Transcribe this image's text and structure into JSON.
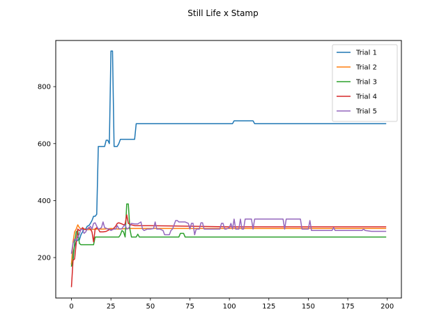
{
  "chart_data": {
    "type": "line",
    "title": "Still Life x Stamp",
    "xlabel": "",
    "ylabel": "",
    "xlim": [
      -9.95,
      208.95
    ],
    "ylim": [
      58,
      962
    ],
    "x_ticks": [
      0,
      25,
      50,
      75,
      100,
      125,
      150,
      175,
      200
    ],
    "y_ticks": [
      200,
      400,
      600,
      800
    ],
    "grid": false,
    "legend_position": "top-right",
    "series": [
      {
        "name": "Trial 1",
        "color": "#1f77b4",
        "points": [
          [
            0,
            180
          ],
          [
            1,
            215
          ],
          [
            2,
            240
          ],
          [
            3,
            255
          ],
          [
            4,
            262
          ],
          [
            5,
            262
          ],
          [
            6,
            280
          ],
          [
            7,
            290
          ],
          [
            8,
            300
          ],
          [
            9,
            300
          ],
          [
            10,
            310
          ],
          [
            11,
            312
          ],
          [
            12,
            320
          ],
          [
            13,
            330
          ],
          [
            14,
            345
          ],
          [
            15,
            345
          ],
          [
            16,
            352
          ],
          [
            17,
            590
          ],
          [
            18,
            590
          ],
          [
            19,
            590
          ],
          [
            20,
            590
          ],
          [
            21,
            590
          ],
          [
            22,
            612
          ],
          [
            23,
            612
          ],
          [
            24,
            600
          ],
          [
            25,
            925
          ],
          [
            26,
            925
          ],
          [
            27,
            590
          ],
          [
            28,
            590
          ],
          [
            29,
            590
          ],
          [
            30,
            600
          ],
          [
            31,
            615
          ],
          [
            32,
            615
          ],
          [
            33,
            615
          ],
          [
            34,
            615
          ],
          [
            35,
            615
          ],
          [
            36,
            615
          ],
          [
            37,
            615
          ],
          [
            38,
            615
          ],
          [
            39,
            615
          ],
          [
            40,
            615
          ],
          [
            41,
            670
          ],
          [
            60,
            670
          ],
          [
            80,
            670
          ],
          [
            100,
            670
          ],
          [
            102,
            670
          ],
          [
            103,
            680
          ],
          [
            110,
            680
          ],
          [
            115,
            680
          ],
          [
            116,
            670
          ],
          [
            150,
            670
          ],
          [
            199,
            670
          ]
        ]
      },
      {
        "name": "Trial 2",
        "color": "#ff7f0e",
        "points": [
          [
            0,
            175
          ],
          [
            1,
            255
          ],
          [
            2,
            290
          ],
          [
            3,
            300
          ],
          [
            4,
            315
          ],
          [
            5,
            305
          ],
          [
            6,
            300
          ],
          [
            7,
            300
          ],
          [
            8,
            300
          ],
          [
            10,
            298
          ],
          [
            12,
            298
          ],
          [
            15,
            300
          ],
          [
            20,
            300
          ],
          [
            25,
            302
          ],
          [
            30,
            300
          ],
          [
            35,
            302
          ],
          [
            40,
            302
          ],
          [
            50,
            302
          ],
          [
            100,
            302
          ],
          [
            150,
            302
          ],
          [
            199,
            302
          ]
        ]
      },
      {
        "name": "Trial 3",
        "color": "#2ca02c",
        "points": [
          [
            0,
            170
          ],
          [
            1,
            190
          ],
          [
            2,
            250
          ],
          [
            3,
            290
          ],
          [
            4,
            295
          ],
          [
            5,
            250
          ],
          [
            6,
            245
          ],
          [
            7,
            245
          ],
          [
            8,
            245
          ],
          [
            9,
            245
          ],
          [
            10,
            245
          ],
          [
            11,
            245
          ],
          [
            12,
            245
          ],
          [
            13,
            245
          ],
          [
            14,
            245
          ],
          [
            15,
            272
          ],
          [
            20,
            272
          ],
          [
            25,
            272
          ],
          [
            30,
            272
          ],
          [
            31,
            280
          ],
          [
            32,
            295
          ],
          [
            33,
            290
          ],
          [
            34,
            272
          ],
          [
            35,
            388
          ],
          [
            36,
            388
          ],
          [
            37,
            300
          ],
          [
            38,
            272
          ],
          [
            40,
            272
          ],
          [
            41,
            272
          ],
          [
            42,
            282
          ],
          [
            43,
            272
          ],
          [
            50,
            272
          ],
          [
            60,
            272
          ],
          [
            68,
            272
          ],
          [
            69,
            285
          ],
          [
            70,
            285
          ],
          [
            71,
            285
          ],
          [
            72,
            272
          ],
          [
            80,
            272
          ],
          [
            100,
            272
          ],
          [
            150,
            272
          ],
          [
            199,
            272
          ]
        ]
      },
      {
        "name": "Trial 4",
        "color": "#d62728",
        "points": [
          [
            0,
            98
          ],
          [
            1,
            190
          ],
          [
            2,
            195
          ],
          [
            3,
            250
          ],
          [
            4,
            300
          ],
          [
            5,
            295
          ],
          [
            6,
            298
          ],
          [
            7,
            305
          ],
          [
            8,
            300
          ],
          [
            9,
            298
          ],
          [
            10,
            300
          ],
          [
            11,
            305
          ],
          [
            12,
            300
          ],
          [
            13,
            290
          ],
          [
            14,
            255
          ],
          [
            15,
            300
          ],
          [
            16,
            305
          ],
          [
            17,
            300
          ],
          [
            18,
            290
          ],
          [
            19,
            290
          ],
          [
            20,
            290
          ],
          [
            22,
            292
          ],
          [
            24,
            298
          ],
          [
            26,
            298
          ],
          [
            28,
            310
          ],
          [
            29,
            320
          ],
          [
            30,
            322
          ],
          [
            31,
            320
          ],
          [
            32,
            318
          ],
          [
            33,
            315
          ],
          [
            34,
            318
          ],
          [
            35,
            350
          ],
          [
            36,
            320
          ],
          [
            38,
            315
          ],
          [
            40,
            312
          ],
          [
            50,
            312
          ],
          [
            100,
            308
          ],
          [
            150,
            308
          ],
          [
            199,
            308
          ]
        ]
      },
      {
        "name": "Trial 5",
        "color": "#9467bd",
        "points": [
          [
            0,
            215
          ],
          [
            1,
            250
          ],
          [
            2,
            265
          ],
          [
            3,
            260
          ],
          [
            4,
            270
          ],
          [
            5,
            282
          ],
          [
            6,
            300
          ],
          [
            7,
            298
          ],
          [
            8,
            285
          ],
          [
            9,
            290
          ],
          [
            10,
            300
          ],
          [
            11,
            302
          ],
          [
            12,
            310
          ],
          [
            13,
            300
          ],
          [
            14,
            320
          ],
          [
            15,
            322
          ],
          [
            16,
            310
          ],
          [
            17,
            300
          ],
          [
            18,
            302
          ],
          [
            19,
            305
          ],
          [
            20,
            325
          ],
          [
            21,
            305
          ],
          [
            22,
            303
          ],
          [
            23,
            300
          ],
          [
            24,
            300
          ],
          [
            25,
            295
          ],
          [
            26,
            298
          ],
          [
            27,
            300
          ],
          [
            28,
            300
          ],
          [
            29,
            312
          ],
          [
            30,
            302
          ],
          [
            31,
            300
          ],
          [
            32,
            302
          ],
          [
            33,
            310
          ],
          [
            34,
            315
          ],
          [
            35,
            300
          ],
          [
            36,
            302
          ],
          [
            37,
            310
          ],
          [
            38,
            320
          ],
          [
            40,
            318
          ],
          [
            42,
            318
          ],
          [
            44,
            325
          ],
          [
            45,
            300
          ],
          [
            46,
            295
          ],
          [
            48,
            300
          ],
          [
            50,
            300
          ],
          [
            52,
            302
          ],
          [
            53,
            325
          ],
          [
            54,
            300
          ],
          [
            56,
            300
          ],
          [
            58,
            295
          ],
          [
            59,
            280
          ],
          [
            60,
            280
          ],
          [
            62,
            280
          ],
          [
            63,
            295
          ],
          [
            64,
            300
          ],
          [
            65,
            315
          ],
          [
            66,
            330
          ],
          [
            67,
            330
          ],
          [
            68,
            325
          ],
          [
            70,
            325
          ],
          [
            72,
            325
          ],
          [
            74,
            320
          ],
          [
            75,
            300
          ],
          [
            76,
            320
          ],
          [
            77,
            320
          ],
          [
            78,
            280
          ],
          [
            79,
            300
          ],
          [
            80,
            300
          ],
          [
            81,
            300
          ],
          [
            82,
            322
          ],
          [
            83,
            322
          ],
          [
            84,
            300
          ],
          [
            86,
            300
          ],
          [
            88,
            300
          ],
          [
            90,
            300
          ],
          [
            92,
            300
          ],
          [
            94,
            300
          ],
          [
            95,
            320
          ],
          [
            96,
            320
          ],
          [
            97,
            300
          ],
          [
            98,
            300
          ],
          [
            100,
            305
          ],
          [
            101,
            320
          ],
          [
            102,
            300
          ],
          [
            103,
            335
          ],
          [
            104,
            300
          ],
          [
            105,
            300
          ],
          [
            106,
            300
          ],
          [
            107,
            335
          ],
          [
            108,
            300
          ],
          [
            109,
            300
          ],
          [
            110,
            335
          ],
          [
            111,
            335
          ],
          [
            112,
            335
          ],
          [
            113,
            335
          ],
          [
            114,
            335
          ],
          [
            115,
            300
          ],
          [
            116,
            335
          ],
          [
            120,
            335
          ],
          [
            125,
            335
          ],
          [
            130,
            335
          ],
          [
            134,
            335
          ],
          [
            135,
            300
          ],
          [
            136,
            335
          ],
          [
            140,
            335
          ],
          [
            145,
            335
          ],
          [
            146,
            300
          ],
          [
            150,
            300
          ],
          [
            151,
            330
          ],
          [
            152,
            295
          ],
          [
            155,
            295
          ],
          [
            160,
            295
          ],
          [
            165,
            295
          ],
          [
            166,
            305
          ],
          [
            167,
            295
          ],
          [
            170,
            295
          ],
          [
            175,
            295
          ],
          [
            180,
            295
          ],
          [
            184,
            295
          ],
          [
            185,
            300
          ],
          [
            186,
            295
          ],
          [
            190,
            292
          ],
          [
            195,
            292
          ],
          [
            199,
            292
          ]
        ]
      }
    ]
  }
}
